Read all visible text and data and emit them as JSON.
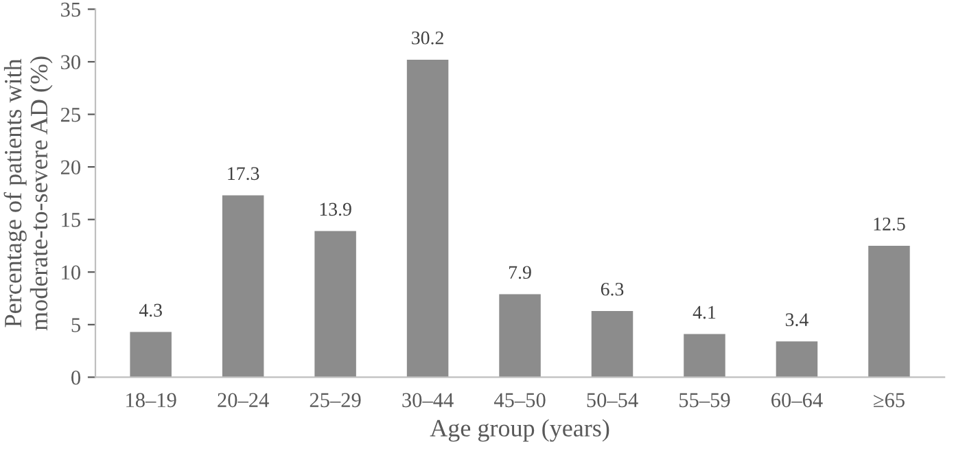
{
  "chart_data": {
    "type": "bar",
    "xlabel": "Age group (years)",
    "ylabel": "Percentage of patients with\nmoderate-to-severe AD (%)",
    "categories": [
      "18–19",
      "20–24",
      "25–29",
      "30–44",
      "45–50",
      "50–54",
      "55–59",
      "60–64",
      "≥65"
    ],
    "values": [
      4.3,
      17.3,
      13.9,
      30.2,
      7.9,
      6.3,
      4.1,
      3.4,
      12.5
    ],
    "color": "#8c8c8c",
    "ylim": [
      0,
      35
    ],
    "yticks": [
      0,
      5,
      10,
      15,
      20,
      25,
      30,
      35
    ],
    "grid": false,
    "data_labels": true
  }
}
